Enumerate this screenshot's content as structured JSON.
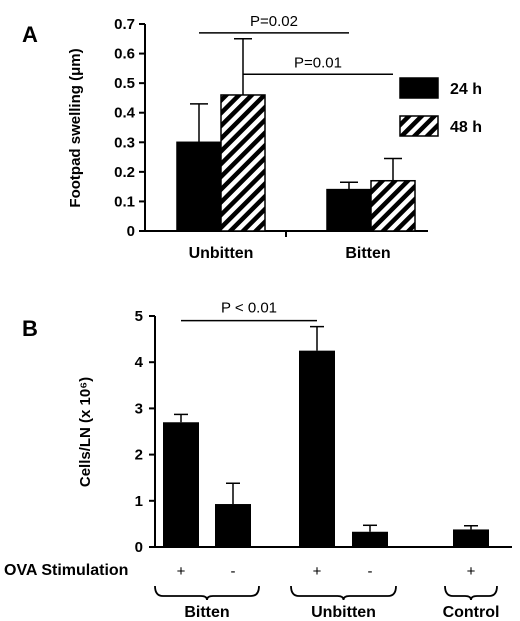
{
  "chart_data": [
    {
      "type": "bar",
      "panel_label": "A",
      "ylabel": "Footpad swelling (μm)",
      "ylim": [
        0,
        0.7
      ],
      "yticks": [
        "0",
        "0.1",
        "0.2",
        "0.3",
        "0.4",
        "0.5",
        "0.6",
        "0.7"
      ],
      "categories": [
        "Unbitten",
        "Bitten"
      ],
      "series": [
        {
          "name": "24 h",
          "values": [
            0.3,
            0.14
          ],
          "errors": [
            0.13,
            0.025
          ],
          "color": "#000000",
          "pattern": "solid"
        },
        {
          "name": "48 h",
          "values": [
            0.46,
            0.17
          ],
          "errors": [
            0.19,
            0.075
          ],
          "color": "#000000",
          "pattern": "hatched"
        }
      ],
      "annotations": [
        {
          "text": "P=0.02",
          "from": [
            "Unbitten",
            "24 h"
          ],
          "to": [
            "Bitten",
            "24 h"
          ],
          "y": 0.67
        },
        {
          "text": "P=0.01",
          "from": [
            "Unbitten",
            "48 h"
          ],
          "to": [
            "Bitten",
            "48 h"
          ],
          "y": 0.53
        }
      ],
      "legend": "right"
    },
    {
      "type": "bar",
      "panel_label": "B",
      "ylabel": "Cells/LN (x 10⁶)",
      "ylim": [
        0,
        5
      ],
      "yticks": [
        "0",
        "1",
        "2",
        "3",
        "4",
        "5"
      ],
      "row_label": "OVA Stimulation",
      "bars": [
        {
          "group": "Bitten",
          "stim": "+",
          "value": 2.7,
          "error": 0.17
        },
        {
          "group": "Bitten",
          "stim": "-",
          "value": 0.93,
          "error": 0.45
        },
        {
          "group": "Unbitten",
          "stim": "+",
          "value": 4.25,
          "error": 0.52
        },
        {
          "group": "Unbitten",
          "stim": "-",
          "value": 0.33,
          "error": 0.14
        },
        {
          "group": "Control",
          "stim": "+",
          "value": 0.38,
          "error": 0.08
        }
      ],
      "groups": [
        "Bitten",
        "Unbitten",
        "Control"
      ],
      "annotations": [
        {
          "text": "P < 0.01",
          "from_bar": 0,
          "to_bar": 2,
          "y": 4.9
        }
      ]
    }
  ]
}
